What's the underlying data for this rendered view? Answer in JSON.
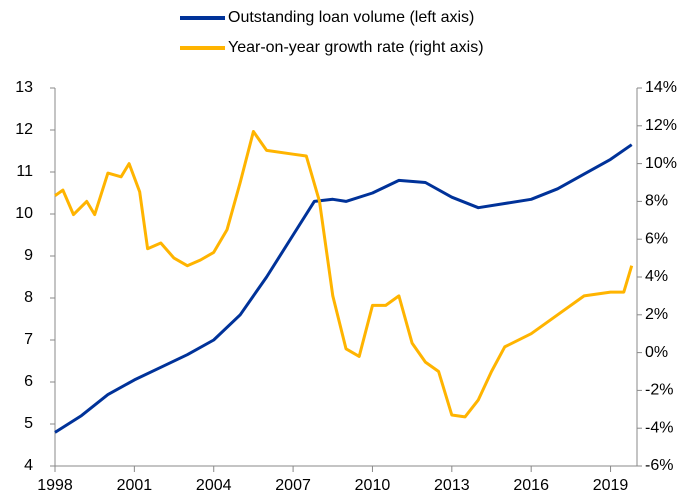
{
  "chart_data": {
    "type": "line",
    "legend": "top",
    "xlim": [
      1998,
      2020
    ],
    "xticks": [
      1998,
      2001,
      2004,
      2007,
      2010,
      2013,
      2016,
      2019
    ],
    "ylim": [
      4,
      13
    ],
    "yticks": [
      4,
      5,
      6,
      7,
      8,
      9,
      10,
      11,
      12,
      13
    ],
    "y2lim": [
      -6,
      14
    ],
    "y2ticks": [
      {
        "value": -6,
        "label": "-6%"
      },
      {
        "value": -4,
        "label": "-4%"
      },
      {
        "value": -2,
        "label": "-2%"
      },
      {
        "value": 0,
        "label": "0%"
      },
      {
        "value": 2,
        "label": "2%"
      },
      {
        "value": 4,
        "label": "4%"
      },
      {
        "value": 6,
        "label": "6%"
      },
      {
        "value": 8,
        "label": "8%"
      },
      {
        "value": 10,
        "label": "10%"
      },
      {
        "value": 12,
        "label": "12%"
      },
      {
        "value": 14,
        "label": "14%"
      }
    ],
    "series": [
      {
        "name": "Outstanding loan volume (left axis)",
        "color": "#003299",
        "axis": "y",
        "x": [
          1998,
          1999,
          2000,
          2001,
          2002,
          2003,
          2004,
          2005,
          2006,
          2007,
          2007.8,
          2008.5,
          2009,
          2010,
          2011,
          2012,
          2013,
          2014,
          2015,
          2016,
          2017,
          2018,
          2019,
          2019.8
        ],
        "values": [
          4.8,
          5.2,
          5.7,
          6.05,
          6.35,
          6.65,
          7.0,
          7.6,
          8.5,
          9.5,
          10.3,
          10.35,
          10.3,
          10.5,
          10.8,
          10.75,
          10.4,
          10.15,
          10.25,
          10.35,
          10.6,
          10.95,
          11.3,
          11.65
        ]
      },
      {
        "name": "Year-on-year growth rate (right axis)",
        "color": "#ffb400",
        "axis": "y2",
        "x": [
          1998,
          1998.3,
          1998.7,
          1999.2,
          1999.5,
          2000,
          2000.5,
          2000.8,
          2001.2,
          2001.5,
          2002,
          2002.5,
          2003,
          2003.5,
          2004,
          2004.5,
          2005,
          2005.5,
          2006,
          2007,
          2007.5,
          2008,
          2008.5,
          2009,
          2009.5,
          2010,
          2010.5,
          2011,
          2011.5,
          2012,
          2012.5,
          2013,
          2013.5,
          2014,
          2014.5,
          2015,
          2016,
          2017,
          2018,
          2019,
          2019.5,
          2019.8
        ],
        "values": [
          8.3,
          8.6,
          7.3,
          8,
          7.3,
          9.5,
          9.3,
          10,
          8.5,
          5.5,
          5.8,
          5.0,
          4.6,
          4.9,
          5.3,
          6.5,
          9,
          11.7,
          10.7,
          10.5,
          10.4,
          8,
          3,
          0.2,
          -0.2,
          2.5,
          2.5,
          3.0,
          0.5,
          -0.5,
          -1,
          -3.3,
          -3.4,
          -2.5,
          -1,
          0.3,
          1,
          2,
          3,
          3.2,
          3.2,
          4.6
        ]
      }
    ]
  }
}
